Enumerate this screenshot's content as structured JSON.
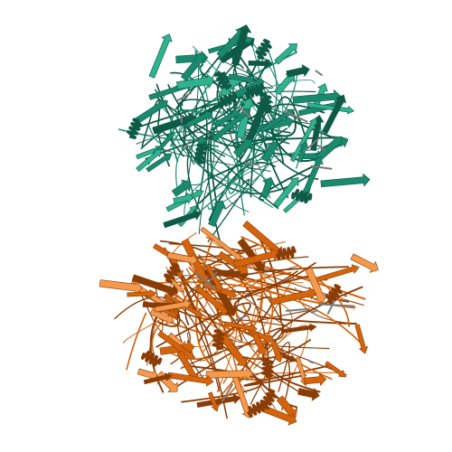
{
  "scene": {
    "subject": "protein-ribbon-structure",
    "background_color": "#ffffff",
    "chains": [
      {
        "id": "chain-a",
        "color": "#1a8a6e",
        "highlight": "#2fb28f",
        "shadow": "#0d5a47",
        "position": "top"
      },
      {
        "id": "chain-b",
        "color": "#d4640c",
        "highlight": "#f59a4c",
        "shadow": "#8a3c05",
        "position": "bottom"
      }
    ]
  }
}
